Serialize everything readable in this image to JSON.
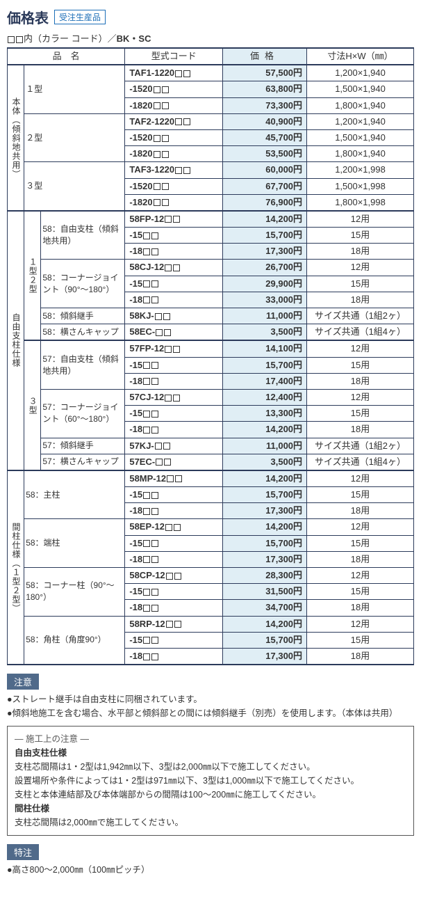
{
  "title": "価格表",
  "badge": "受注生産品",
  "subtitle_prefix": "内（カラー コード）／",
  "subtitle_codes": "BK・SC",
  "headers": {
    "name": "品　名",
    "code": "型式コード",
    "price": "価格",
    "dim": "寸法H×W（㎜）"
  },
  "group_labels": {
    "body": "本体（傾斜地共用）",
    "free": "自由支柱仕様",
    "inter": "間柱仕様（１型２型）",
    "type1": "１型",
    "type2": "２型",
    "type3": "３型",
    "type12": "１型２型",
    "type3b": "３型"
  },
  "rowlabels": {
    "fp58": "58：自由支柱（傾斜地共用）",
    "cj58": "58：コーナージョイント（90°～180°）",
    "kj58": "58：傾斜継手",
    "ec58": "58：横さんキャップ",
    "fp57": "57：自由支柱（傾斜地共用）",
    "cj57": "57：コーナージョイント（60°～180°）",
    "kj57": "57：傾斜継手",
    "ec57": "57：横さんキャップ",
    "mp58": "58：主柱",
    "ep58": "58：端柱",
    "cp58": "58：コーナー柱（90°～180°）",
    "rp58": "58：角柱（角度90°）"
  },
  "rows": {
    "b1a": {
      "code": "TAF1-1220",
      "price": "57,500円",
      "dim": "1,200×1,940"
    },
    "b1b": {
      "code": "-1520",
      "price": "63,800円",
      "dim": "1,500×1,940"
    },
    "b1c": {
      "code": "-1820",
      "price": "73,300円",
      "dim": "1,800×1,940"
    },
    "b2a": {
      "code": "TAF2-1220",
      "price": "40,900円",
      "dim": "1,200×1,940"
    },
    "b2b": {
      "code": "-1520",
      "price": "45,700円",
      "dim": "1,500×1,940"
    },
    "b2c": {
      "code": "-1820",
      "price": "53,500円",
      "dim": "1,800×1,940"
    },
    "b3a": {
      "code": "TAF3-1220",
      "price": "60,000円",
      "dim": "1,200×1,998"
    },
    "b3b": {
      "code": "-1520",
      "price": "67,700円",
      "dim": "1,500×1,998"
    },
    "b3c": {
      "code": "-1820",
      "price": "76,900円",
      "dim": "1,800×1,998"
    },
    "fp58a": {
      "code": "58FP-12",
      "price": "14,200円",
      "dim": "12用"
    },
    "fp58b": {
      "code": "-15",
      "price": "15,700円",
      "dim": "15用"
    },
    "fp58c": {
      "code": "-18",
      "price": "17,300円",
      "dim": "18用"
    },
    "cj58a": {
      "code": "58CJ-12",
      "price": "26,700円",
      "dim": "12用"
    },
    "cj58b": {
      "code": "-15",
      "price": "29,900円",
      "dim": "15用"
    },
    "cj58c": {
      "code": "-18",
      "price": "33,000円",
      "dim": "18用"
    },
    "kj58": {
      "code": "58KJ-",
      "price": "11,000円",
      "dim": "サイズ共通（1組2ヶ）"
    },
    "ec58": {
      "code": "58EC-",
      "price": "3,500円",
      "dim": "サイズ共通（1組4ヶ）"
    },
    "fp57a": {
      "code": "57FP-12",
      "price": "14,100円",
      "dim": "12用"
    },
    "fp57b": {
      "code": "-15",
      "price": "15,700円",
      "dim": "15用"
    },
    "fp57c": {
      "code": "-18",
      "price": "17,400円",
      "dim": "18用"
    },
    "cj57a": {
      "code": "57CJ-12",
      "price": "12,400円",
      "dim": "12用"
    },
    "cj57b": {
      "code": "-15",
      "price": "13,300円",
      "dim": "15用"
    },
    "cj57c": {
      "code": "-18",
      "price": "14,200円",
      "dim": "18用"
    },
    "kj57": {
      "code": "57KJ-",
      "price": "11,000円",
      "dim": "サイズ共通（1組2ヶ）"
    },
    "ec57": {
      "code": "57EC-",
      "price": "3,500円",
      "dim": "サイズ共通（1組4ヶ）"
    },
    "mp58a": {
      "code": "58MP-12",
      "price": "14,200円",
      "dim": "12用"
    },
    "mp58b": {
      "code": "-15",
      "price": "15,700円",
      "dim": "15用"
    },
    "mp58c": {
      "code": "-18",
      "price": "17,300円",
      "dim": "18用"
    },
    "ep58a": {
      "code": "58EP-12",
      "price": "14,200円",
      "dim": "12用"
    },
    "ep58b": {
      "code": "-15",
      "price": "15,700円",
      "dim": "15用"
    },
    "ep58c": {
      "code": "-18",
      "price": "17,300円",
      "dim": "18用"
    },
    "cp58a": {
      "code": "58CP-12",
      "price": "28,300円",
      "dim": "12用"
    },
    "cp58b": {
      "code": "-15",
      "price": "31,500円",
      "dim": "15用"
    },
    "cp58c": {
      "code": "-18",
      "price": "34,700円",
      "dim": "18用"
    },
    "rp58a": {
      "code": "58RP-12",
      "price": "14,200円",
      "dim": "12用"
    },
    "rp58b": {
      "code": "-15",
      "price": "15,700円",
      "dim": "15用"
    },
    "rp58c": {
      "code": "-18",
      "price": "17,300円",
      "dim": "18用"
    }
  },
  "notes": {
    "attention_label": "注意",
    "n1": "●ストレート継手は自由支柱に同梱されています。",
    "n2": "●傾斜地施工を含む場合、水平部と傾斜部との間には傾斜継手（別売）を使用します。（本体は共用）",
    "box_title": "― 施工上の注意 ―",
    "box_h1": "自由支柱仕様",
    "box_l1": "支柱芯間隔は1・2型は1,942㎜以下、3型は2,000㎜以下で施工してください。",
    "box_l2": "設置場所や条件によっては1・2型は971㎜以下、3型は1,000㎜以下で施工してください。",
    "box_l3": "支柱と本体連結部及び本体端部からの間隔は100～200㎜に施工してください。",
    "box_h2": "間柱仕様",
    "box_l4": "支柱芯間隔は2,000㎜で施工してください。",
    "special_label": "特注",
    "special": "●高さ800～2,000㎜（100㎜ピッチ）"
  }
}
